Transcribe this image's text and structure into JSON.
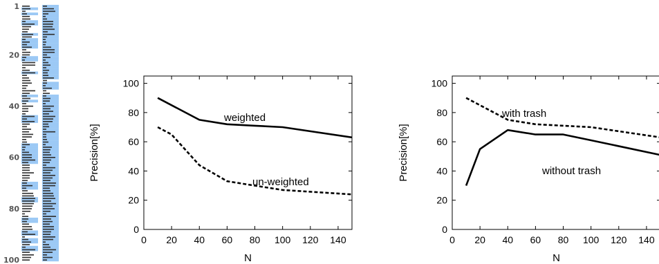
{
  "ranking_strip": {
    "rank_labels": [
      "1",
      "20",
      "40",
      "60",
      "80",
      "100"
    ],
    "highlight_color": "#9cc9f5",
    "row_count": 100,
    "left_column_highlighted_rows": [
      2,
      4,
      7,
      8,
      12,
      14,
      15,
      16,
      17,
      21,
      22,
      27,
      36,
      38,
      44,
      45,
      46,
      55,
      56,
      57,
      58,
      59,
      60,
      61,
      62,
      70,
      71,
      72,
      76,
      77,
      84,
      85,
      89,
      90,
      92,
      93,
      95,
      96
    ],
    "right_column_highlighted_rows": [
      1,
      2,
      3,
      4,
      5,
      6,
      7,
      8,
      9,
      10,
      11,
      12,
      13,
      14,
      15,
      16,
      17,
      18,
      19,
      20,
      21,
      22,
      23,
      24,
      25,
      26,
      27,
      28,
      29,
      31,
      32,
      33,
      36,
      37,
      38,
      39,
      40,
      41,
      42,
      43,
      44,
      45,
      46,
      47,
      48,
      49,
      50,
      51,
      52,
      53,
      54,
      55,
      56,
      57,
      58,
      59,
      60,
      61,
      62,
      63,
      64,
      65,
      66,
      67,
      68,
      69,
      70,
      71,
      72,
      73,
      74,
      75,
      76,
      77,
      78,
      79,
      80,
      81,
      82,
      83,
      84,
      85,
      86,
      87,
      88,
      89,
      90,
      91,
      92,
      93,
      94,
      95,
      96,
      97,
      98,
      99,
      100
    ]
  },
  "chart_data": [
    {
      "type": "line",
      "xlabel": "N",
      "ylabel": "Precision[%]",
      "xlim": [
        0,
        150
      ],
      "ylim": [
        0,
        105
      ],
      "xticks": [
        0,
        20,
        40,
        60,
        80,
        100,
        120,
        140
      ],
      "yticks": [
        0,
        20,
        40,
        60,
        80,
        100
      ],
      "series": [
        {
          "name": "weighted",
          "style": "solid",
          "x": [
            10,
            40,
            60,
            80,
            100,
            150
          ],
          "values": [
            90,
            75,
            72,
            71,
            70,
            63
          ]
        },
        {
          "name": "un-weighted",
          "style": "dashed",
          "x": [
            10,
            20,
            40,
            60,
            80,
            100,
            150
          ],
          "values": [
            70,
            65,
            44,
            33,
            30,
            27,
            24
          ]
        }
      ]
    },
    {
      "type": "line",
      "xlabel": "N",
      "ylabel": "Precision[%]",
      "xlim": [
        0,
        150
      ],
      "ylim": [
        0,
        105
      ],
      "xticks": [
        0,
        20,
        40,
        60,
        80,
        100,
        120,
        140
      ],
      "yticks": [
        0,
        20,
        40,
        60,
        80,
        100
      ],
      "series": [
        {
          "name": "with trash",
          "style": "dashed",
          "x": [
            10,
            40,
            60,
            80,
            100,
            150
          ],
          "values": [
            90,
            75,
            72,
            71,
            70,
            63
          ]
        },
        {
          "name": "without trash",
          "style": "solid",
          "x": [
            10,
            20,
            40,
            60,
            80,
            100,
            150
          ],
          "values": [
            30,
            55,
            68,
            65,
            65,
            61,
            51
          ]
        }
      ]
    }
  ]
}
